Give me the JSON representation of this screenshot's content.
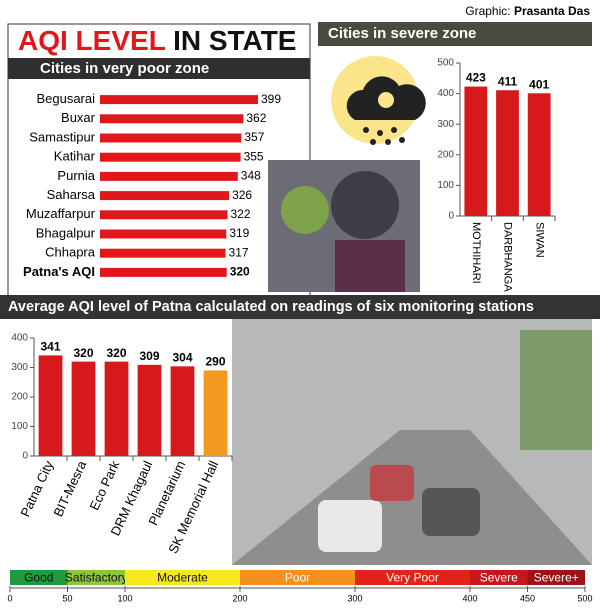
{
  "credit_label": "Graphic:",
  "credit_name": "Prasanta Das",
  "title_highlight": "AQI LEVEL",
  "title_rest": "IN STATE",
  "chart_data": [
    {
      "type": "hbar",
      "title": "Cities in very poor zone",
      "categories": [
        "Begusarai",
        "Buxar",
        "Samastipur",
        "Katihar",
        "Purnia",
        "Saharsa",
        "Muzaffarpur",
        "Bhagalpur",
        "Chhapra",
        "Patna's AQI"
      ],
      "values": [
        399,
        362,
        357,
        355,
        348,
        326,
        322,
        319,
        317,
        320
      ],
      "color": "#e0181b"
    },
    {
      "type": "bar",
      "title": "Cities in severe zone",
      "categories": [
        "MOTHIHARI",
        "DARBHANGA",
        "SIWAN"
      ],
      "values": [
        423,
        411,
        401
      ],
      "color": "#d8191c",
      "ylim": [
        0,
        500
      ],
      "yticks": [
        0,
        100,
        200,
        300,
        400,
        500
      ]
    },
    {
      "type": "bar",
      "title": "Average AQI level of Patna calculated on readings of six monitoring stations",
      "categories": [
        "Patna City",
        "BIT-Mesra",
        "Eco Park",
        "DRM Khagaul",
        "Planetarium",
        "SK Memorial Hall"
      ],
      "values": [
        341,
        320,
        320,
        309,
        304,
        290
      ],
      "colors": [
        "#d8191c",
        "#d8191c",
        "#d8191c",
        "#d8191c",
        "#d8191c",
        "#f39a1e"
      ],
      "ylim": [
        0,
        400
      ],
      "yticks": [
        0,
        100,
        200,
        300,
        400
      ]
    },
    {
      "type": "scale",
      "categories": [
        "Good",
        "Satisfactory",
        "Moderate",
        "Poor",
        "Very Poor",
        "Severe",
        "Severe+"
      ],
      "bins": [
        0,
        50,
        100,
        200,
        300,
        400,
        450,
        500
      ],
      "colors": [
        "#1e9b3c",
        "#8cc63f",
        "#f7e81c",
        "#f4901e",
        "#e2231a",
        "#c8171c",
        "#9e1416"
      ],
      "xlim": [
        0,
        500
      ]
    }
  ]
}
